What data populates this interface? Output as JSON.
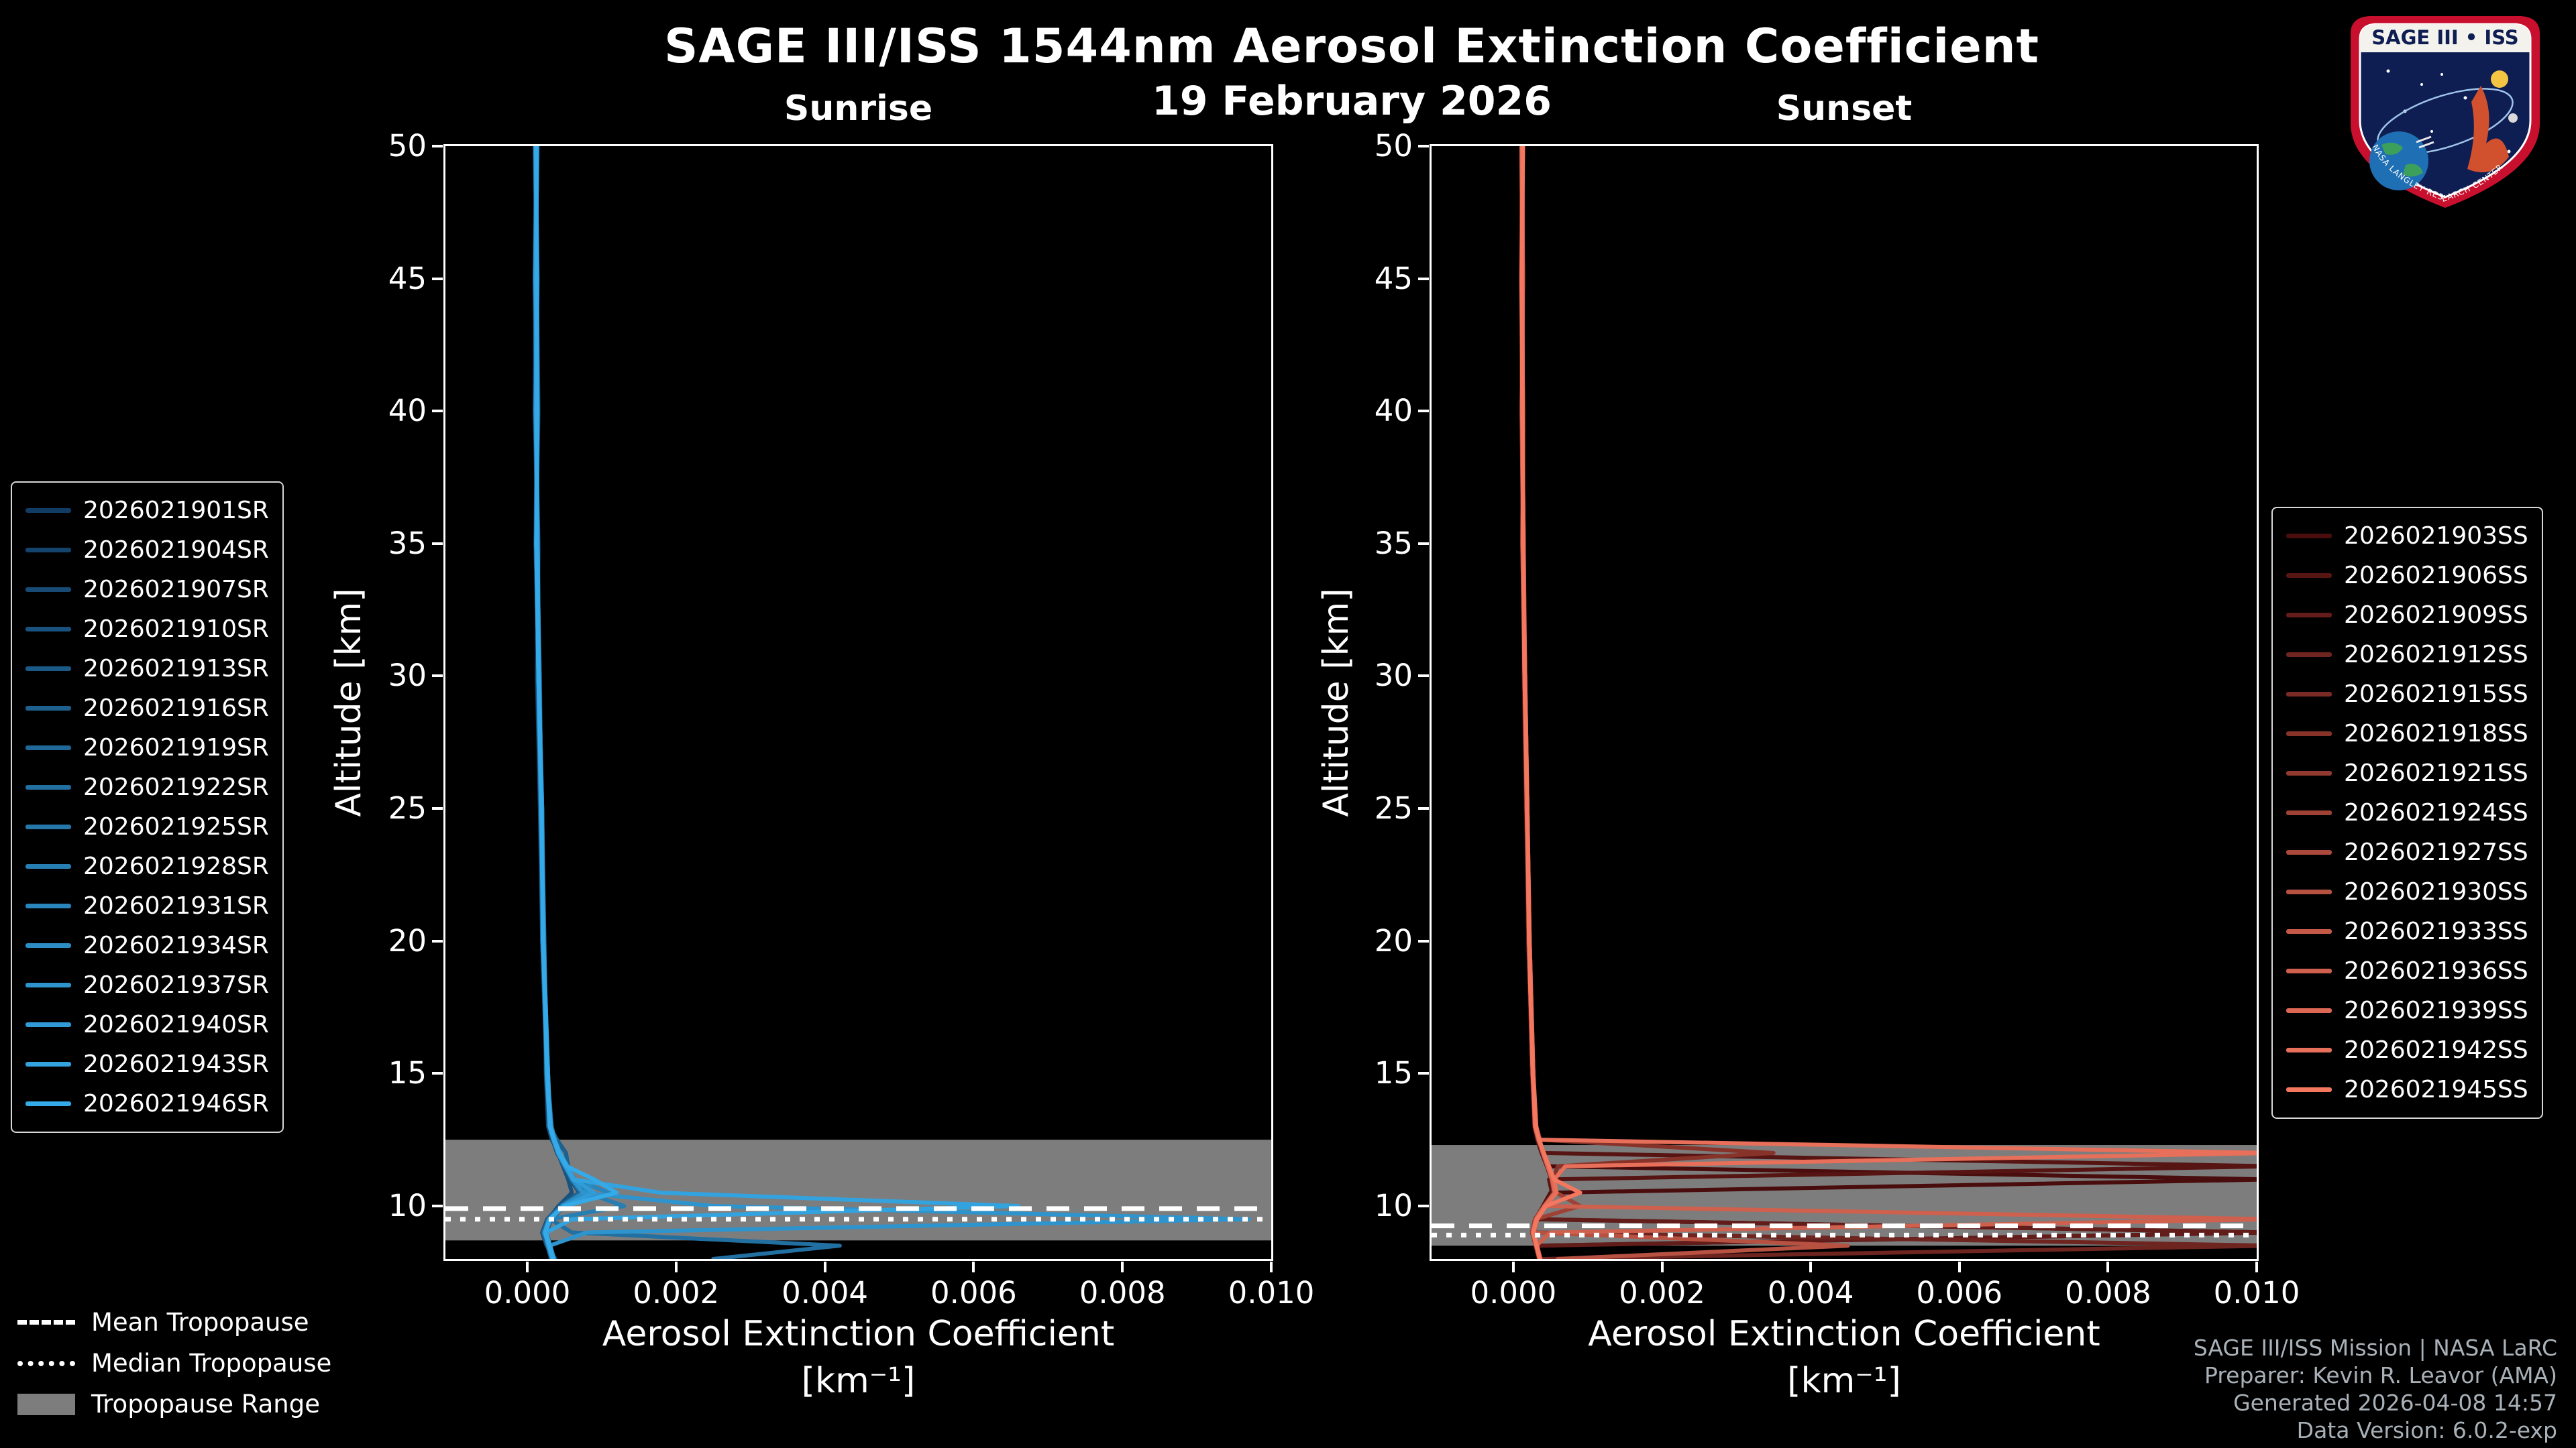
{
  "page": {
    "title": "SAGE III/ISS 1544nm Aerosol Extinction Coefficient",
    "date": "19 February 2026",
    "background": "#000000",
    "accent_blue": "#35aae8",
    "accent_red": "#f4775f",
    "tropopause_band_color": "#7d7d7d"
  },
  "logo": {
    "title": "SAGE III • ISS",
    "footer_text": "NASA LANGLEY RESEARCH CENTER"
  },
  "axes": {
    "xlabel": "Aerosol Extinction Coefficient",
    "xlabel_units": "[km⁻¹]",
    "ylabel": "Altitude [km]"
  },
  "tropopause_legend": {
    "mean": "Mean Tropopause",
    "median": "Median Tropopause",
    "range": "Tropopause Range"
  },
  "footer": {
    "line1": "SAGE III/ISS Mission | NASA LaRC",
    "line2": "Preparer: Kevin R. Leavor (AMA)",
    "line3": "Generated 2026-04-08 14:57",
    "line4": "Data Version: 6.0.2-exp"
  },
  "chart_data": [
    {
      "type": "line",
      "title": "Sunrise",
      "xlabel": "Aerosol Extinction Coefficient [km⁻¹]",
      "ylabel": "Altitude [km]",
      "xlim": [
        -0.0011,
        0.01
      ],
      "ylim": [
        8,
        50
      ],
      "xticks": [
        0.0,
        0.002,
        0.004,
        0.006,
        0.008,
        0.01
      ],
      "xtick_labels": [
        "0.000",
        "0.002",
        "0.004",
        "0.006",
        "0.008",
        "0.010"
      ],
      "yticks": [
        10,
        15,
        20,
        25,
        30,
        35,
        40,
        45,
        50
      ],
      "grid": false,
      "legend_position": "left",
      "tropopause": {
        "mean": 9.9,
        "median": 9.5,
        "range": [
          8.7,
          12.5
        ]
      },
      "alt": [
        50,
        45,
        40,
        35,
        30,
        25,
        20,
        15,
        13,
        12.5,
        12,
        11.5,
        11,
        10.5,
        10,
        9.5,
        9,
        8.5,
        8
      ],
      "series": [
        {
          "name": "2026021901SR",
          "color": "#123c63",
          "ext": [
            0.00012,
            0.0001,
            0.00013,
            0.00011,
            0.00015,
            0.00019,
            0.00021,
            0.00026,
            0.0003,
            0.00034,
            0.0004,
            0.0005,
            0.00062,
            0.00075,
            0.00048,
            0.0003,
            0.00024,
            0.00028,
            0.00033
          ]
        },
        {
          "name": "2026021904SR",
          "color": "#14436c",
          "ext": [
            0.00014,
            0.00011,
            0.0001,
            0.00014,
            0.00013,
            0.00017,
            0.0002,
            0.00027,
            0.00032,
            0.00038,
            0.00044,
            0.00054,
            0.00058,
            0.0007,
            0.00044,
            0.00027,
            0.0002,
            0.00026,
            0.00038
          ]
        },
        {
          "name": "2026021907SR",
          "color": "#174b75",
          "ext": [
            0.0001,
            0.00013,
            0.00015,
            0.00012,
            0.00016,
            0.0002,
            0.00023,
            0.00025,
            0.00028,
            0.00033,
            0.00042,
            0.00052,
            0.0006,
            0.00072,
            0.0005,
            0.00032,
            0.00026,
            0.00031,
            0.00036
          ]
        },
        {
          "name": "2026021910SR",
          "color": "#19527e",
          "ext": [
            0.00013,
            0.00012,
            0.00011,
            0.00015,
            0.00014,
            0.00018,
            0.00021,
            0.00028,
            0.00031,
            0.00036,
            0.00041,
            0.00048,
            0.00055,
            0.0006,
            0.00042,
            0.00028,
            0.00022,
            0.00027,
            0.00032
          ]
        },
        {
          "name": "2026021913SR",
          "color": "#1b5986",
          "ext": [
            0.00011,
            0.00014,
            0.00012,
            0.00013,
            0.00017,
            0.00019,
            0.00022,
            0.00027,
            0.00033,
            0.00037,
            0.00043,
            0.00053,
            0.00063,
            0.00078,
            0.00047,
            0.00029,
            0.00023,
            0.00029,
            0.00034
          ]
        },
        {
          "name": "2026021916SR",
          "color": "#1e618f",
          "ext": [
            0.00012,
            0.00011,
            0.00014,
            0.00012,
            0.00015,
            0.00018,
            0.0002,
            0.00026,
            0.0003,
            0.0004,
            0.00052,
            0.00055,
            0.00061,
            0.00074,
            0.00046,
            0.0003,
            0.00025,
            0.0003,
            0.00035
          ]
        },
        {
          "name": "2026021919SR",
          "color": "#206898",
          "ext": [
            0.00013,
            0.0001,
            0.00012,
            0.00014,
            0.00016,
            0.0002,
            0.00022,
            0.00028,
            0.00031,
            0.00035,
            0.00042,
            0.00051,
            0.00059,
            0.00071,
            0.00045,
            0.00028,
            0.00021,
            0.00027,
            0.00033
          ]
        },
        {
          "name": "2026021922SR",
          "color": "#226fa1",
          "ext": [
            0.00012,
            0.00012,
            0.00013,
            0.00013,
            0.00015,
            0.00019,
            0.00021,
            0.00027,
            0.0003,
            0.00035,
            0.00041,
            0.0005,
            0.0006,
            0.00073,
            0.00046,
            0.00031,
            0.0006,
            0.0042,
            0.0025
          ]
        },
        {
          "name": "2026021925SR",
          "color": "#2577aa",
          "ext": [
            0.00011,
            0.00013,
            0.00014,
            0.00012,
            0.00016,
            0.00019,
            0.00023,
            0.00026,
            0.00032,
            0.00036,
            0.00043,
            0.00052,
            0.00061,
            0.00076,
            0.00048,
            0.0003,
            0.00024,
            0.00029,
            0.00035
          ]
        },
        {
          "name": "2026021928SR",
          "color": "#277eb3",
          "ext": [
            0.00012,
            0.00011,
            0.00013,
            0.00014,
            0.00015,
            0.0002,
            0.00022,
            0.00027,
            0.00031,
            0.00036,
            0.00042,
            0.00051,
            0.00062,
            0.00079,
            0.0013,
            0.00031,
            0.00025,
            0.0003,
            0.00034
          ]
        },
        {
          "name": "2026021931SR",
          "color": "#2985bb",
          "ext": [
            0.00013,
            0.00012,
            0.00012,
            0.00013,
            0.00016,
            0.00019,
            0.00021,
            0.00028,
            0.0003,
            0.00035,
            0.00042,
            0.00052,
            0.00064,
            0.0011,
            0.00049,
            0.0003,
            0.00024,
            0.00028,
            0.00033
          ]
        },
        {
          "name": "2026021934SR",
          "color": "#2c8dc4",
          "ext": [
            0.00012,
            0.00013,
            0.00011,
            0.00014,
            0.00015,
            0.00018,
            0.00022,
            0.00027,
            0.00031,
            0.00036,
            0.00043,
            0.00053,
            0.0009,
            0.00077,
            0.00047,
            0.00029,
            0.00023,
            0.00029,
            0.00034
          ]
        },
        {
          "name": "2026021937SR",
          "color": "#2e94cd",
          "ext": [
            0.00011,
            0.00012,
            0.00013,
            0.00013,
            0.00016,
            0.00019,
            0.00022,
            0.00026,
            0.0003,
            0.00035,
            0.00041,
            0.00051,
            0.00061,
            0.00075,
            0.0025,
            0.0097,
            0.0008,
            0.0003,
            0.00035
          ]
        },
        {
          "name": "2026021940SR",
          "color": "#309bd6",
          "ext": [
            0.00012,
            0.00011,
            0.00014,
            0.00012,
            0.00015,
            0.0002,
            0.00021,
            0.00027,
            0.00032,
            0.00037,
            0.00044,
            0.00054,
            0.00063,
            0.0009,
            0.00049,
            0.00031,
            0.00025,
            0.00031,
            0.00036
          ]
        },
        {
          "name": "2026021943SR",
          "color": "#33a3df",
          "ext": [
            0.00013,
            0.00012,
            0.00012,
            0.00014,
            0.00016,
            0.00019,
            0.00022,
            0.00028,
            0.00031,
            0.00036,
            0.00042,
            0.00052,
            0.00062,
            0.0018,
            0.0066,
            0.0006,
            0.00026,
            0.0003,
            0.00034
          ]
        },
        {
          "name": "2026021946SR",
          "color": "#35aae8",
          "ext": [
            0.00012,
            0.00013,
            0.00013,
            0.00012,
            0.00015,
            0.00019,
            0.00021,
            0.00027,
            0.0003,
            0.00036,
            0.00043,
            0.00053,
            0.0009,
            0.0012,
            0.0005,
            0.0003,
            0.00024,
            0.00029,
            0.00035
          ]
        }
      ]
    },
    {
      "type": "line",
      "title": "Sunset",
      "xlabel": "Aerosol Extinction Coefficient [km⁻¹]",
      "ylabel": "Altitude [km]",
      "xlim": [
        -0.0011,
        0.01
      ],
      "ylim": [
        8,
        50
      ],
      "xticks": [
        0.0,
        0.002,
        0.004,
        0.006,
        0.008,
        0.01
      ],
      "xtick_labels": [
        "0.000",
        "0.002",
        "0.004",
        "0.006",
        "0.008",
        "0.010"
      ],
      "yticks": [
        10,
        15,
        20,
        25,
        30,
        35,
        40,
        45,
        50
      ],
      "grid": false,
      "legend_position": "right",
      "tropopause": {
        "mean": 9.25,
        "median": 8.9,
        "range": [
          8.5,
          12.3
        ]
      },
      "alt": [
        50,
        45,
        40,
        35,
        30,
        25,
        20,
        15,
        13,
        12.5,
        12,
        11.5,
        11,
        10.5,
        10,
        9.5,
        9,
        8.5,
        8
      ],
      "series": [
        {
          "name": "2026021903SS",
          "color": "#4a0d0d",
          "ext": [
            0.00012,
            0.0001,
            0.00013,
            0.00012,
            0.00015,
            0.00018,
            0.0002,
            0.00025,
            0.00028,
            0.00032,
            0.00038,
            0.00045,
            0.0102,
            0.0005,
            0.0004,
            0.0003,
            0.0102,
            0.0003,
            0.00034
          ]
        },
        {
          "name": "2026021906SS",
          "color": "#561513",
          "ext": [
            0.00011,
            0.00012,
            0.00012,
            0.00014,
            0.00014,
            0.00017,
            0.00021,
            0.00026,
            0.00029,
            0.00033,
            0.00039,
            0.0102,
            0.00048,
            0.00052,
            0.00041,
            0.00029,
            0.00026,
            0.00031,
            0.00035
          ]
        },
        {
          "name": "2026021909SS",
          "color": "#621c19",
          "ext": [
            0.00013,
            0.00011,
            0.00012,
            0.00013,
            0.00016,
            0.00019,
            0.00021,
            0.00025,
            0.0003,
            0.00034,
            0.0004,
            0.00046,
            0.00052,
            0.00055,
            0.00042,
            0.00031,
            0.0102,
            0.00032,
            0.00036
          ]
        },
        {
          "name": "2026021912SS",
          "color": "#6e241f",
          "ext": [
            0.00012,
            0.00012,
            0.00013,
            0.00012,
            0.00015,
            0.00018,
            0.0002,
            0.00026,
            0.00029,
            0.00033,
            0.00039,
            0.00045,
            0.00051,
            0.00054,
            0.00041,
            0.0003,
            0.00028,
            0.0102,
            0.0004
          ]
        },
        {
          "name": "2026021915SS",
          "color": "#7b2b24",
          "ext": [
            0.00011,
            0.00013,
            0.00011,
            0.00014,
            0.00015,
            0.00018,
            0.00021,
            0.00026,
            0.0003,
            0.00034,
            0.00039,
            0.00046,
            0.00052,
            0.00056,
            0.00042,
            0.0003,
            0.00026,
            0.00031,
            0.00036
          ]
        },
        {
          "name": "2026021918SS",
          "color": "#87332a",
          "ext": [
            0.00012,
            0.00011,
            0.00013,
            0.00013,
            0.00016,
            0.00019,
            0.00022,
            0.00027,
            0.00031,
            0.00036,
            0.0035,
            0.0006,
            0.00053,
            0.00057,
            0.00043,
            0.00031,
            0.00027,
            0.00032,
            0.00037
          ]
        },
        {
          "name": "2026021921SS",
          "color": "#933a30",
          "ext": [
            0.00013,
            0.00012,
            0.00012,
            0.00014,
            0.00015,
            0.00019,
            0.00021,
            0.00026,
            0.00029,
            0.00033,
            0.0004,
            0.00047,
            0.00053,
            0.00056,
            0.00041,
            0.00029,
            0.00025,
            0.0003,
            0.00035
          ]
        },
        {
          "name": "2026021924SS",
          "color": "#9f4236",
          "ext": [
            0.00012,
            0.00013,
            0.00011,
            0.00013,
            0.00016,
            0.00018,
            0.00022,
            0.00027,
            0.0003,
            0.00035,
            0.00041,
            0.00048,
            0.00054,
            0.00058,
            0.0009,
            0.0003,
            0.00026,
            0.00031,
            0.00036
          ]
        },
        {
          "name": "2026021927SS",
          "color": "#ab4a3c",
          "ext": [
            0.00011,
            0.00012,
            0.00013,
            0.00012,
            0.00015,
            0.00019,
            0.00021,
            0.00026,
            0.00029,
            0.00034,
            0.0004,
            0.00046,
            0.00052,
            0.00055,
            0.00042,
            0.00031,
            0.00027,
            0.00032,
            0.00035
          ]
        },
        {
          "name": "2026021930SS",
          "color": "#b75142",
          "ext": [
            0.00012,
            0.00011,
            0.00012,
            0.00014,
            0.00016,
            0.00018,
            0.00021,
            0.00027,
            0.0003,
            0.00034,
            0.00041,
            0.00047,
            0.00053,
            0.00057,
            0.00043,
            0.00032,
            0.00028,
            0.0045,
            0.0006
          ]
        },
        {
          "name": "2026021933SS",
          "color": "#c45948",
          "ext": [
            0.00013,
            0.00012,
            0.00013,
            0.00013,
            0.00015,
            0.00019,
            0.00022,
            0.00026,
            0.0003,
            0.00035,
            0.0004,
            0.00047,
            0.00053,
            0.00056,
            0.00042,
            0.0003,
            0.00026,
            0.00031,
            0.00036
          ]
        },
        {
          "name": "2026021936SS",
          "color": "#d0604e",
          "ext": [
            0.00012,
            0.00013,
            0.00012,
            0.00013,
            0.00016,
            0.00019,
            0.00021,
            0.00027,
            0.0003,
            0.00034,
            0.00041,
            0.00048,
            0.00054,
            0.00058,
            0.00044,
            0.0102,
            0.0005,
            0.00031,
            0.00036
          ]
        },
        {
          "name": "2026021939SS",
          "color": "#dc6854",
          "ext": [
            0.00011,
            0.00012,
            0.00012,
            0.00014,
            0.00015,
            0.00018,
            0.00021,
            0.00026,
            0.00029,
            0.00034,
            0.0004,
            0.00046,
            0.00052,
            0.00056,
            0.00042,
            0.00031,
            0.00026,
            0.00031,
            0.00035
          ]
        },
        {
          "name": "2026021942SS",
          "color": "#e86f59",
          "ext": [
            0.00012,
            0.00012,
            0.00013,
            0.00013,
            0.00016,
            0.00019,
            0.00022,
            0.00027,
            0.00031,
            0.00035,
            0.0102,
            0.0007,
            0.00055,
            0.00058,
            0.00043,
            0.00031,
            0.00027,
            0.00032,
            0.00036
          ]
        },
        {
          "name": "2026021945SS",
          "color": "#f4775f",
          "ext": [
            0.00013,
            0.00011,
            0.00012,
            0.00013,
            0.00015,
            0.00019,
            0.00021,
            0.00026,
            0.0003,
            0.00035,
            0.00041,
            0.00048,
            0.00055,
            0.0009,
            0.00044,
            0.00032,
            0.00027,
            0.00031,
            0.00036
          ]
        }
      ]
    }
  ]
}
